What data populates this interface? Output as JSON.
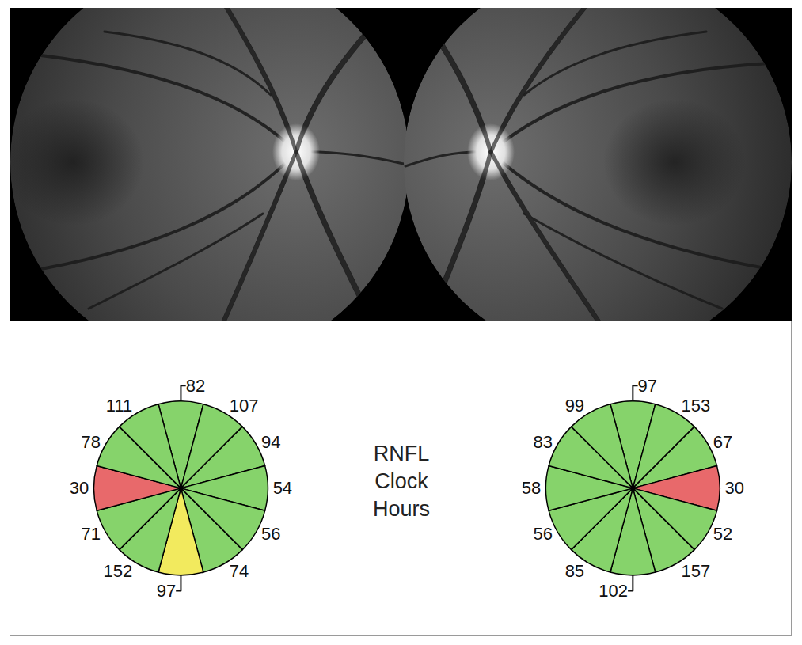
{
  "chart_data": [
    {
      "type": "pie",
      "values": [
        82,
        107,
        94,
        54,
        56,
        74,
        97,
        152,
        71,
        30,
        78,
        111
      ],
      "colors": [
        "#86d36b",
        "#86d36b",
        "#86d36b",
        "#86d36b",
        "#86d36b",
        "#86d36b",
        "#f2ea5e",
        "#86d36b",
        "#86d36b",
        "#e8696b",
        "#86d36b",
        "#86d36b"
      ],
      "data_labels": true
    },
    {
      "type": "pie",
      "values": [
        97,
        153,
        67,
        30,
        52,
        157,
        102,
        85,
        56,
        58,
        83,
        99
      ],
      "colors": [
        "#86d36b",
        "#86d36b",
        "#86d36b",
        "#e8696b",
        "#86d36b",
        "#86d36b",
        "#86d36b",
        "#86d36b",
        "#86d36b",
        "#86d36b",
        "#86d36b",
        "#86d36b"
      ],
      "data_labels": true
    }
  ],
  "annotation": "RNFL Clock Hours"
}
